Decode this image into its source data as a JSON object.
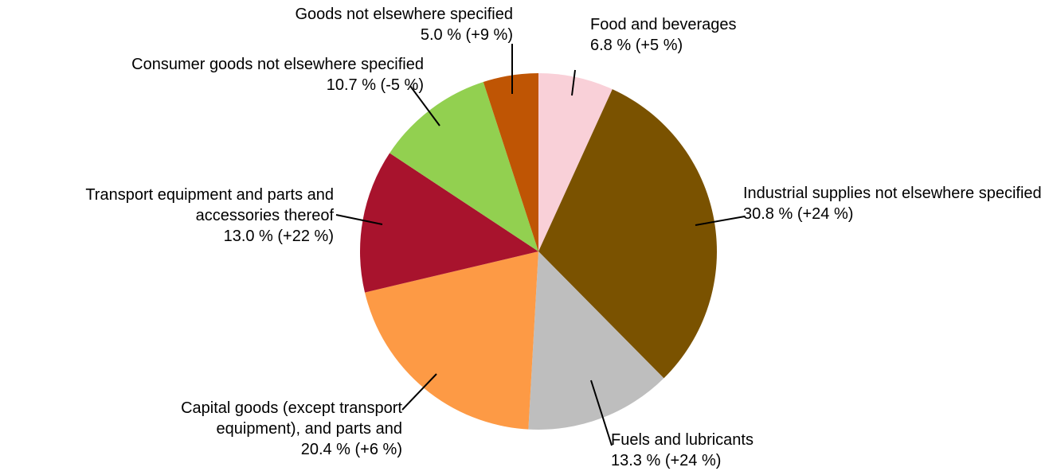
{
  "chart_data": {
    "type": "pie",
    "categories": [
      "Food and beverages",
      "Industrial supplies not elsewhere specified",
      "Fuels and lubricants",
      "Capital goods (except transport equipment), and parts and",
      "Transport equipment and parts and accessories thereof",
      "Consumer goods not elsewhere specified",
      "Goods not elsewhere specified"
    ],
    "values": [
      6.8,
      30.8,
      13.3,
      20.4,
      13.0,
      10.7,
      5.0
    ],
    "value_labels": [
      "6.8 % (+5 %)",
      "30.8 % (+24 %)",
      "13.3 % (+24 %)",
      "20.4 % (+6 %)",
      "13.0 % (+22 %)",
      "10.7 % (-5 %)",
      "5.0 % (+9 %)"
    ],
    "colors": [
      "#f9d0d8",
      "#7a5200",
      "#bebebe",
      "#fd9a45",
      "#a8132d",
      "#92d050",
      "#bf5504"
    ]
  }
}
